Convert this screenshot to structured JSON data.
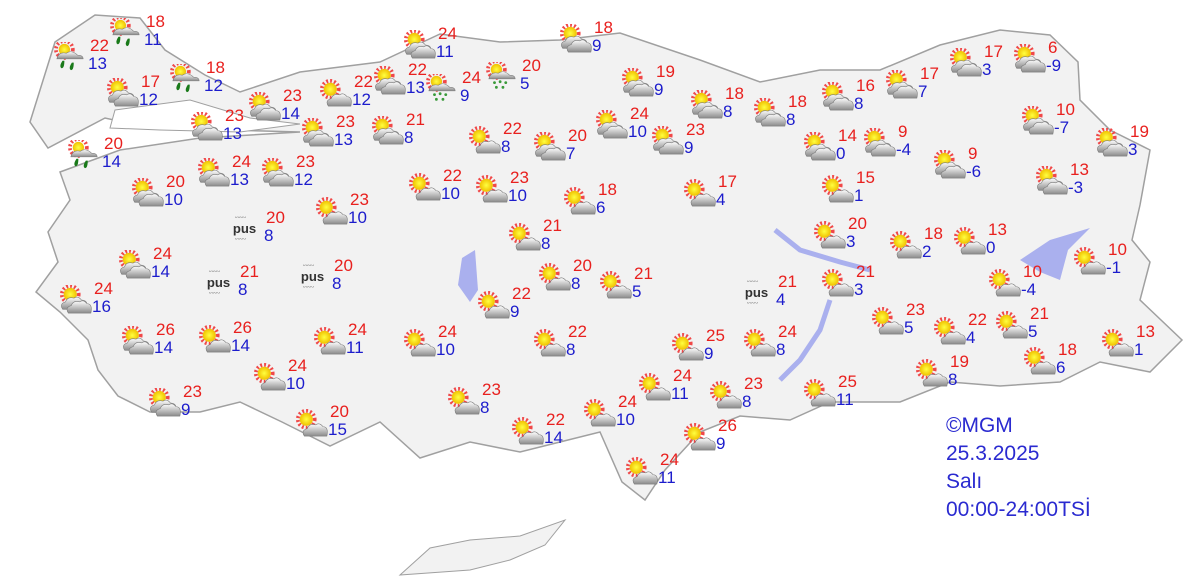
{
  "colors": {
    "max_temp": "#e8201e",
    "min_temp": "#1c1ccc",
    "land": "#f2f2f2",
    "water": "#aab0ee",
    "border": "#a8a8a8",
    "info": "#2a2ad0"
  },
  "info": {
    "copyright": "©MGM",
    "date": "25.3.2025",
    "day": "Salı",
    "period": "00:00-24:00TSİ"
  },
  "haze_label": "pus",
  "stations": [
    {
      "icon": "rain",
      "max": "22",
      "min": "13"
    },
    {
      "icon": "rain",
      "max": "18",
      "min": "11"
    },
    {
      "icon": "partly-cloudy",
      "max": "17",
      "min": "12"
    },
    {
      "icon": "rain",
      "max": "18",
      "min": "12"
    },
    {
      "icon": "rain",
      "max": "20",
      "min": "14"
    },
    {
      "icon": "partly-cloudy",
      "max": "23",
      "min": "13"
    },
    {
      "icon": "partly-cloudy",
      "max": "23",
      "min": "14"
    },
    {
      "icon": "mostly-sunny",
      "max": "22",
      "min": "12"
    },
    {
      "icon": "partly-cloudy",
      "max": "23",
      "min": "13"
    },
    {
      "icon": "partly-cloudy",
      "max": "22",
      "min": "13"
    },
    {
      "icon": "partly-cloudy",
      "max": "24",
      "min": "11"
    },
    {
      "icon": "showers",
      "max": "24",
      "min": "9"
    },
    {
      "icon": "showers",
      "max": "20",
      "min": "5"
    },
    {
      "icon": "partly-cloudy",
      "max": "21",
      "min": "8"
    },
    {
      "icon": "mostly-sunny",
      "max": "22",
      "min": "8"
    },
    {
      "icon": "partly-cloudy",
      "max": "18",
      "min": "9"
    },
    {
      "icon": "partly-cloudy",
      "max": "19",
      "min": "9"
    },
    {
      "icon": "partly-cloudy",
      "max": "20",
      "min": "7"
    },
    {
      "icon": "partly-cloudy",
      "max": "24",
      "min": "10"
    },
    {
      "icon": "partly-cloudy",
      "max": "23",
      "min": "9"
    },
    {
      "icon": "partly-cloudy",
      "max": "18",
      "min": "8"
    },
    {
      "icon": "partly-cloudy",
      "max": "18",
      "min": "8"
    },
    {
      "icon": "partly-cloudy",
      "max": "16",
      "min": "8"
    },
    {
      "icon": "partly-cloudy",
      "max": "17",
      "min": "7"
    },
    {
      "icon": "partly-cloudy",
      "max": "17",
      "min": "3"
    },
    {
      "icon": "partly-cloudy",
      "max": "6",
      "min": "-9"
    },
    {
      "icon": "partly-cloudy",
      "max": "10",
      "min": "-7"
    },
    {
      "icon": "partly-cloudy",
      "max": "19",
      "min": "3"
    },
    {
      "icon": "partly-cloudy",
      "max": "13",
      "min": "-3"
    },
    {
      "icon": "partly-cloudy",
      "max": "14",
      "min": "0"
    },
    {
      "icon": "partly-cloudy",
      "max": "9",
      "min": "-4"
    },
    {
      "icon": "partly-cloudy",
      "max": "9",
      "min": "-6"
    },
    {
      "icon": "mostly-sunny",
      "max": "15",
      "min": "1"
    },
    {
      "icon": "partly-cloudy",
      "max": "20",
      "min": "10"
    },
    {
      "icon": "partly-cloudy",
      "max": "24",
      "min": "13"
    },
    {
      "icon": "partly-cloudy",
      "max": "23",
      "min": "12"
    },
    {
      "icon": "mostly-sunny",
      "max": "23",
      "min": "10"
    },
    {
      "icon": "mostly-sunny",
      "max": "22",
      "min": "10"
    },
    {
      "icon": "mostly-sunny",
      "max": "23",
      "min": "10"
    },
    {
      "icon": "mostly-sunny",
      "max": "18",
      "min": "6"
    },
    {
      "icon": "mostly-sunny",
      "max": "17",
      "min": "4"
    },
    {
      "icon": "haze",
      "max": "20",
      "min": "8"
    },
    {
      "icon": "mostly-sunny",
      "max": "21",
      "min": "8"
    },
    {
      "icon": "partly-cloudy",
      "max": "24",
      "min": "14"
    },
    {
      "icon": "haze",
      "max": "21",
      "min": "8"
    },
    {
      "icon": "haze",
      "max": "20",
      "min": "8"
    },
    {
      "icon": "mostly-sunny",
      "max": "20",
      "min": "8"
    },
    {
      "icon": "mostly-sunny",
      "max": "21",
      "min": "5"
    },
    {
      "icon": "partly-cloudy",
      "max": "24",
      "min": "16"
    },
    {
      "icon": "mostly-sunny",
      "max": "22",
      "min": "9"
    },
    {
      "icon": "partly-cloudy",
      "max": "26",
      "min": "14"
    },
    {
      "icon": "mostly-sunny",
      "max": "26",
      "min": "14"
    },
    {
      "icon": "mostly-sunny",
      "max": "24",
      "min": "11"
    },
    {
      "icon": "mostly-sunny",
      "max": "24",
      "min": "10"
    },
    {
      "icon": "mostly-sunny",
      "max": "22",
      "min": "8"
    },
    {
      "icon": "mostly-sunny",
      "max": "25",
      "min": "9"
    },
    {
      "icon": "mostly-sunny",
      "max": "24",
      "min": "8"
    },
    {
      "icon": "mostly-sunny",
      "max": "24",
      "min": "10"
    },
    {
      "icon": "partly-cloudy",
      "max": "23",
      "min": "9"
    },
    {
      "icon": "mostly-sunny",
      "max": "20",
      "min": "15"
    },
    {
      "icon": "mostly-sunny",
      "max": "23",
      "min": "8"
    },
    {
      "icon": "mostly-sunny",
      "max": "22",
      "min": "14"
    },
    {
      "icon": "mostly-sunny",
      "max": "24",
      "min": "10"
    },
    {
      "icon": "mostly-sunny",
      "max": "24",
      "min": "11"
    },
    {
      "icon": "mostly-sunny",
      "max": "23",
      "min": "8"
    },
    {
      "icon": "mostly-sunny",
      "max": "25",
      "min": "11"
    },
    {
      "icon": "mostly-sunny",
      "max": "26",
      "min": "9"
    },
    {
      "icon": "mostly-sunny",
      "max": "24",
      "min": "11"
    },
    {
      "icon": "mostly-sunny",
      "max": "20",
      "min": "3"
    },
    {
      "icon": "mostly-sunny",
      "max": "18",
      "min": "2"
    },
    {
      "icon": "mostly-sunny",
      "max": "13",
      "min": "0"
    },
    {
      "icon": "haze",
      "max": "21",
      "min": "4"
    },
    {
      "icon": "mostly-sunny",
      "max": "21",
      "min": "3"
    },
    {
      "icon": "mostly-sunny",
      "max": "10",
      "min": "-4"
    },
    {
      "icon": "mostly-sunny",
      "max": "10",
      "min": "-1"
    },
    {
      "icon": "mostly-sunny",
      "max": "23",
      "min": "5"
    },
    {
      "icon": "mostly-sunny",
      "max": "22",
      "min": "4"
    },
    {
      "icon": "mostly-sunny",
      "max": "21",
      "min": "5"
    },
    {
      "icon": "mostly-sunny",
      "max": "13",
      "min": "1"
    },
    {
      "icon": "mostly-sunny",
      "max": "18",
      "min": "6"
    },
    {
      "icon": "mostly-sunny",
      "max": "19",
      "min": "8"
    }
  ]
}
